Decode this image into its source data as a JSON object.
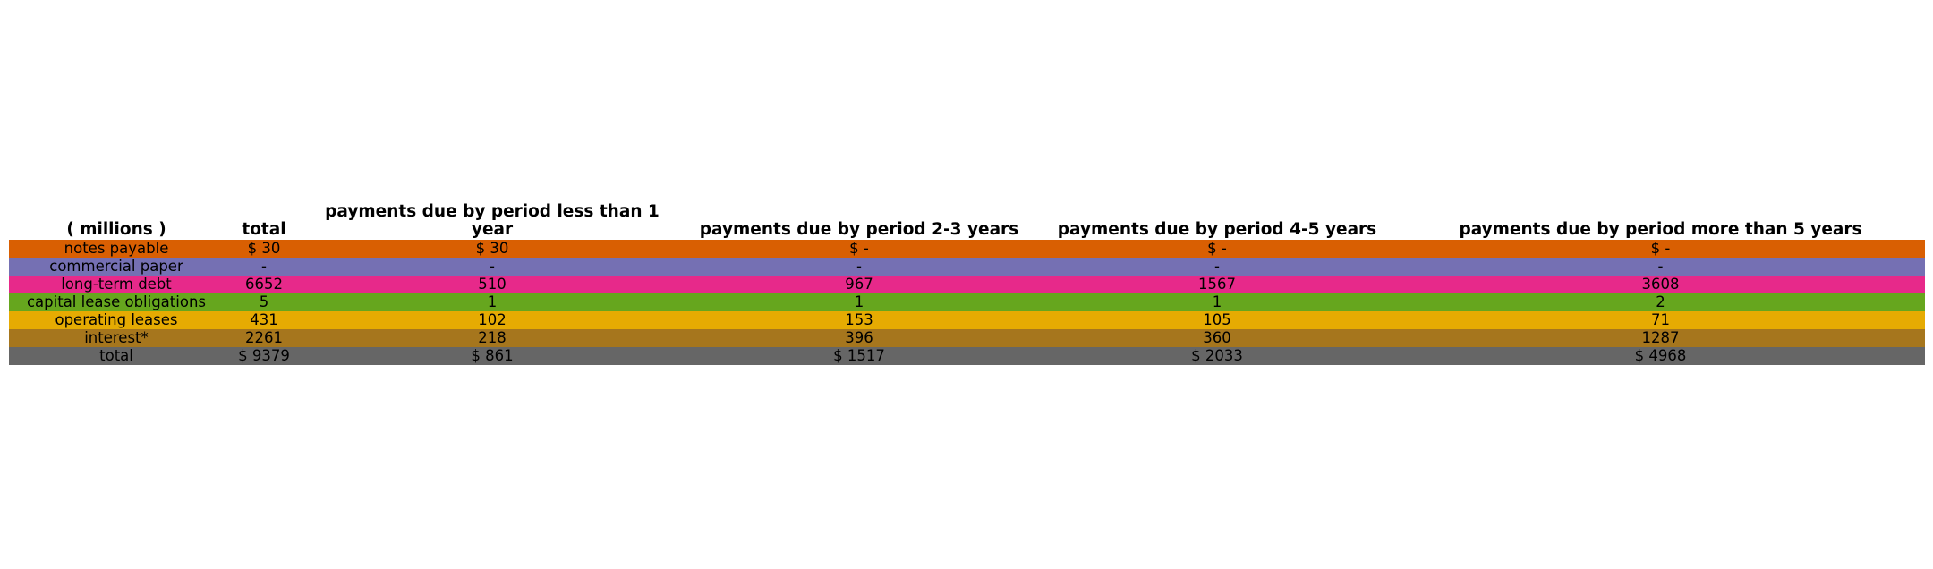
{
  "chart_data": {
    "type": "table",
    "columns": [
      "( millions )",
      "total",
      "payments due by period less than 1 year",
      "payments due by period 2-3 years",
      "payments due by period 4-5 years",
      "payments due by period more than 5 years"
    ],
    "rows": [
      {
        "label": "notes payable",
        "color": "#d95f02",
        "cells": [
          "$ 30",
          "$ 30",
          "$ -",
          "$ -",
          "$ -"
        ]
      },
      {
        "label": "commercial paper",
        "color": "#7570b3",
        "cells": [
          "-",
          "-",
          "-",
          "-",
          "-"
        ]
      },
      {
        "label": "long-term debt",
        "color": "#e7298a",
        "cells": [
          "6652",
          "510",
          "967",
          "1567",
          "3608"
        ]
      },
      {
        "label": "capital lease obligations",
        "color": "#66a61e",
        "cells": [
          "5",
          "1",
          "1",
          "1",
          "2"
        ]
      },
      {
        "label": "operating leases",
        "color": "#e6ab02",
        "cells": [
          "431",
          "102",
          "153",
          "105",
          "71"
        ]
      },
      {
        "label": "interest*",
        "color": "#a6761d",
        "cells": [
          "2261",
          "218",
          "396",
          "360",
          "1287"
        ]
      },
      {
        "label": "total",
        "color": "#666666",
        "cells": [
          "$ 9379",
          "$ 861",
          "$ 1517",
          "$ 2033",
          "$ 4968"
        ]
      }
    ]
  }
}
